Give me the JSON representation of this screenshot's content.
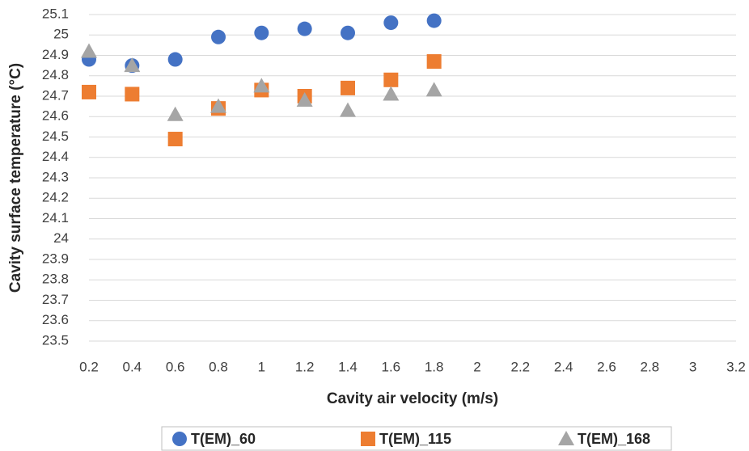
{
  "chart_data": {
    "type": "scatter",
    "x_label": "Cavity air velocity (m/s)",
    "y_label": "Cavity surface temperature (°C)",
    "x": [
      0.2,
      0.4,
      0.6,
      0.8,
      1.0,
      1.2,
      1.4,
      1.6,
      1.8
    ],
    "series": [
      {
        "name": "T(EM)_60",
        "color": "#4472c4",
        "marker": "circle",
        "values": [
          24.88,
          24.85,
          24.88,
          24.99,
          25.01,
          25.03,
          25.01,
          25.06,
          25.07
        ]
      },
      {
        "name": "T(EM)_115",
        "color": "#ed7d31",
        "marker": "square",
        "values": [
          24.72,
          24.71,
          24.49,
          24.64,
          24.73,
          24.7,
          24.74,
          24.78,
          24.87
        ]
      },
      {
        "name": "T(EM)_168",
        "color": "#a5a5a5",
        "marker": "triangle",
        "values": [
          24.92,
          24.85,
          24.61,
          24.65,
          24.75,
          24.68,
          24.63,
          24.71,
          24.73
        ]
      }
    ],
    "xlim": [
      0.2,
      3.2
    ],
    "xticks": [
      0.2,
      0.4,
      0.6,
      0.8,
      1,
      1.2,
      1.4,
      1.6,
      1.8,
      2,
      2.2,
      2.4,
      2.6,
      2.8,
      3,
      3.2
    ],
    "ylim": [
      23.5,
      25.1
    ],
    "yticks": [
      23.5,
      23.6,
      23.7,
      23.8,
      23.9,
      24,
      24.1,
      24.2,
      24.3,
      24.4,
      24.5,
      24.6,
      24.7,
      24.8,
      24.9,
      25,
      25.1
    ],
    "grid": true,
    "legend": "bottom"
  }
}
